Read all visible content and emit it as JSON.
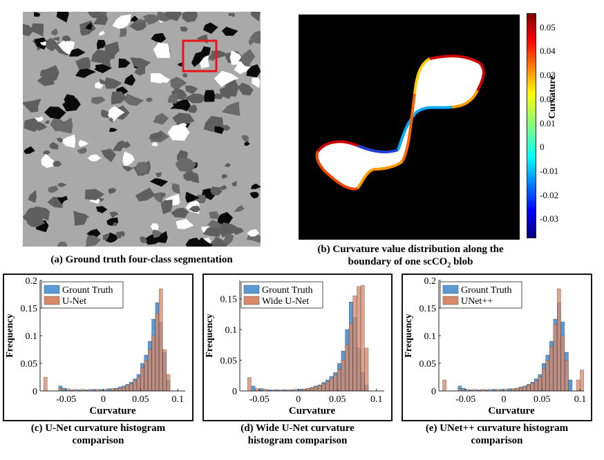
{
  "panel_a": {
    "caption": "(a) Ground truth four-class segmentation",
    "highlight_color": "#e8141a"
  },
  "panel_b": {
    "caption_line1": "(b) Curvature value distribution along the",
    "caption_line2": "boundary of one scCO",
    "caption_sub": "2",
    "caption_end": " blob",
    "colorbar": {
      "label": "Curvature",
      "ticks": [
        "0.05",
        "0.04",
        "0.03",
        "0.02",
        "0.01",
        "0",
        "-0.01",
        "-0.02",
        "-0.03"
      ],
      "tick_values": [
        0.05,
        0.04,
        0.03,
        0.02,
        0.01,
        0,
        -0.01,
        -0.02,
        -0.03
      ],
      "range": [
        -0.038,
        0.056
      ]
    }
  },
  "chart_data": [
    {
      "type": "bar",
      "subtype": "histogram",
      "caption_line1": "(c) U-Net curvature histogram",
      "caption_line2": "comparison",
      "xlabel": "Curvature",
      "ylabel": "Frequency",
      "xlim": [
        -0.085,
        0.11
      ],
      "ylim": [
        0,
        0.2
      ],
      "xticks": [
        -0.05,
        0,
        0.05,
        0.1
      ],
      "xtick_labels": [
        "-0.05",
        "0",
        "0.05",
        "0.1"
      ],
      "yticks": [
        0,
        0.05,
        0.1,
        0.15,
        0.2
      ],
      "ytick_labels": [
        "0",
        "0.05",
        "0.1",
        "0.15",
        "0.2"
      ],
      "legend_position": "top-left",
      "bin_width": 0.005,
      "series": [
        {
          "name": "Grount Truth",
          "color": "#5b9bd5",
          "bins": [
            [
              -0.06,
              0.009
            ],
            [
              -0.055,
              0.005
            ],
            [
              -0.045,
              0.002
            ],
            [
              -0.035,
              0.002
            ],
            [
              -0.025,
              0.002
            ],
            [
              -0.015,
              0.003
            ],
            [
              -0.005,
              0.003
            ],
            [
              0.005,
              0.004
            ],
            [
              0.01,
              0.004
            ],
            [
              0.015,
              0.005
            ],
            [
              0.02,
              0.007
            ],
            [
              0.025,
              0.009
            ],
            [
              0.03,
              0.012
            ],
            [
              0.035,
              0.016
            ],
            [
              0.04,
              0.022
            ],
            [
              0.045,
              0.03
            ],
            [
              0.05,
              0.05
            ],
            [
              0.055,
              0.065
            ],
            [
              0.06,
              0.09
            ],
            [
              0.065,
              0.13
            ],
            [
              0.07,
              0.16
            ],
            [
              0.075,
              0.125
            ],
            [
              0.08,
              0.07
            ],
            [
              0.085,
              0.02
            ]
          ]
        },
        {
          "name": "U-Net",
          "color": "#d8896a",
          "bins": [
            [
              -0.08,
              0.025
            ],
            [
              -0.06,
              0.005
            ],
            [
              -0.05,
              0.004
            ],
            [
              -0.04,
              0.003
            ],
            [
              -0.03,
              0.003
            ],
            [
              -0.02,
              0.003
            ],
            [
              -0.01,
              0.003
            ],
            [
              0.0,
              0.003
            ],
            [
              0.01,
              0.004
            ],
            [
              0.015,
              0.004
            ],
            [
              0.02,
              0.005
            ],
            [
              0.025,
              0.007
            ],
            [
              0.03,
              0.01
            ],
            [
              0.035,
              0.013
            ],
            [
              0.04,
              0.018
            ],
            [
              0.045,
              0.025
            ],
            [
              0.05,
              0.042
            ],
            [
              0.055,
              0.055
            ],
            [
              0.06,
              0.075
            ],
            [
              0.065,
              0.1
            ],
            [
              0.07,
              0.14
            ],
            [
              0.075,
              0.185
            ],
            [
              0.08,
              0.075
            ],
            [
              0.085,
              0.03
            ]
          ]
        }
      ]
    },
    {
      "type": "bar",
      "subtype": "histogram",
      "caption_line1": "(d) Wide U-Net curvature",
      "caption_line2": "histogram comparison",
      "xlabel": "Curvature",
      "ylabel": "Frequency",
      "xlim": [
        -0.075,
        0.11
      ],
      "ylim": [
        0,
        0.18
      ],
      "xticks": [
        -0.05,
        0,
        0.05,
        0.1
      ],
      "xtick_labels": [
        "-0.05",
        "0",
        "0.05",
        "0.1"
      ],
      "yticks": [
        0,
        0.05,
        0.1,
        0.15
      ],
      "ytick_labels": [
        "0",
        "0.05",
        "0.1",
        "0.15"
      ],
      "legend_position": "top-left",
      "bin_width": 0.005,
      "series": [
        {
          "name": "Grount Truth",
          "color": "#5b9bd5",
          "bins": [
            [
              -0.06,
              0.008
            ],
            [
              -0.05,
              0.004
            ],
            [
              -0.04,
              0.002
            ],
            [
              -0.03,
              0.002
            ],
            [
              -0.02,
              0.002
            ],
            [
              -0.01,
              0.002
            ],
            [
              0.0,
              0.003
            ],
            [
              0.005,
              0.003
            ],
            [
              0.01,
              0.004
            ],
            [
              0.015,
              0.006
            ],
            [
              0.02,
              0.008
            ],
            [
              0.025,
              0.01
            ],
            [
              0.03,
              0.014
            ],
            [
              0.035,
              0.018
            ],
            [
              0.04,
              0.024
            ],
            [
              0.045,
              0.03
            ],
            [
              0.05,
              0.045
            ],
            [
              0.055,
              0.065
            ],
            [
              0.06,
              0.1
            ],
            [
              0.065,
              0.145
            ],
            [
              0.07,
              0.12
            ],
            [
              0.075,
              0.07
            ],
            [
              0.08,
              0.03
            ],
            [
              0.085,
              0.01
            ]
          ]
        },
        {
          "name": "Wide U-Net",
          "color": "#d8896a",
          "bins": [
            [
              -0.065,
              0.022
            ],
            [
              -0.055,
              0.004
            ],
            [
              -0.045,
              0.003
            ],
            [
              -0.035,
              0.002
            ],
            [
              -0.025,
              0.002
            ],
            [
              -0.015,
              0.002
            ],
            [
              -0.005,
              0.003
            ],
            [
              0.005,
              0.003
            ],
            [
              0.01,
              0.004
            ],
            [
              0.015,
              0.005
            ],
            [
              0.02,
              0.007
            ],
            [
              0.025,
              0.009
            ],
            [
              0.03,
              0.012
            ],
            [
              0.035,
              0.015
            ],
            [
              0.04,
              0.02
            ],
            [
              0.045,
              0.026
            ],
            [
              0.05,
              0.035
            ],
            [
              0.055,
              0.05
            ],
            [
              0.06,
              0.075
            ],
            [
              0.065,
              0.11
            ],
            [
              0.07,
              0.155
            ],
            [
              0.075,
              0.17
            ],
            [
              0.08,
              0.172
            ],
            [
              0.085,
              0.07
            ]
          ]
        }
      ]
    },
    {
      "type": "bar",
      "subtype": "histogram",
      "caption_line1": "(e) UNet++ curvature histogram",
      "caption_line2": "comparison",
      "xlabel": "Curvature",
      "ylabel": "Frequency",
      "xlim": [
        -0.085,
        0.105
      ],
      "ylim": [
        0,
        0.2
      ],
      "xticks": [
        -0.05,
        0,
        0.05,
        0.1
      ],
      "xtick_labels": [
        "-0.05",
        "0",
        "0.05",
        "0.1"
      ],
      "yticks": [
        0,
        0.05,
        0.1,
        0.15,
        0.2
      ],
      "ytick_labels": [
        "0",
        "0.05",
        "0.1",
        "0.15",
        "0.2"
      ],
      "legend_position": "top-left",
      "bin_width": 0.005,
      "series": [
        {
          "name": "Grount Truth",
          "color": "#5b9bd5",
          "bins": [
            [
              -0.06,
              0.009
            ],
            [
              -0.055,
              0.005
            ],
            [
              -0.045,
              0.002
            ],
            [
              -0.035,
              0.002
            ],
            [
              -0.025,
              0.002
            ],
            [
              -0.015,
              0.003
            ],
            [
              -0.005,
              0.003
            ],
            [
              0.005,
              0.004
            ],
            [
              0.01,
              0.004
            ],
            [
              0.015,
              0.005
            ],
            [
              0.02,
              0.007
            ],
            [
              0.025,
              0.009
            ],
            [
              0.03,
              0.012
            ],
            [
              0.035,
              0.016
            ],
            [
              0.04,
              0.022
            ],
            [
              0.045,
              0.03
            ],
            [
              0.05,
              0.05
            ],
            [
              0.055,
              0.065
            ],
            [
              0.06,
              0.09
            ],
            [
              0.065,
              0.13
            ],
            [
              0.07,
              0.16
            ],
            [
              0.075,
              0.125
            ],
            [
              0.08,
              0.07
            ],
            [
              0.085,
              0.02
            ]
          ]
        },
        {
          "name": "UNet++",
          "color": "#d8896a",
          "bins": [
            [
              -0.08,
              0.02
            ],
            [
              -0.06,
              0.004
            ],
            [
              -0.05,
              0.003
            ],
            [
              -0.04,
              0.003
            ],
            [
              -0.03,
              0.003
            ],
            [
              -0.02,
              0.003
            ],
            [
              -0.01,
              0.003
            ],
            [
              0.0,
              0.003
            ],
            [
              0.01,
              0.004
            ],
            [
              0.015,
              0.005
            ],
            [
              0.02,
              0.006
            ],
            [
              0.025,
              0.008
            ],
            [
              0.03,
              0.011
            ],
            [
              0.035,
              0.014
            ],
            [
              0.04,
              0.018
            ],
            [
              0.045,
              0.025
            ],
            [
              0.05,
              0.04
            ],
            [
              0.055,
              0.055
            ],
            [
              0.06,
              0.08
            ],
            [
              0.065,
              0.12
            ],
            [
              0.07,
              0.185
            ],
            [
              0.075,
              0.1
            ],
            [
              0.08,
              0.055
            ],
            [
              0.095,
              0.02
            ],
            [
              0.1,
              0.038
            ]
          ]
        }
      ]
    }
  ]
}
